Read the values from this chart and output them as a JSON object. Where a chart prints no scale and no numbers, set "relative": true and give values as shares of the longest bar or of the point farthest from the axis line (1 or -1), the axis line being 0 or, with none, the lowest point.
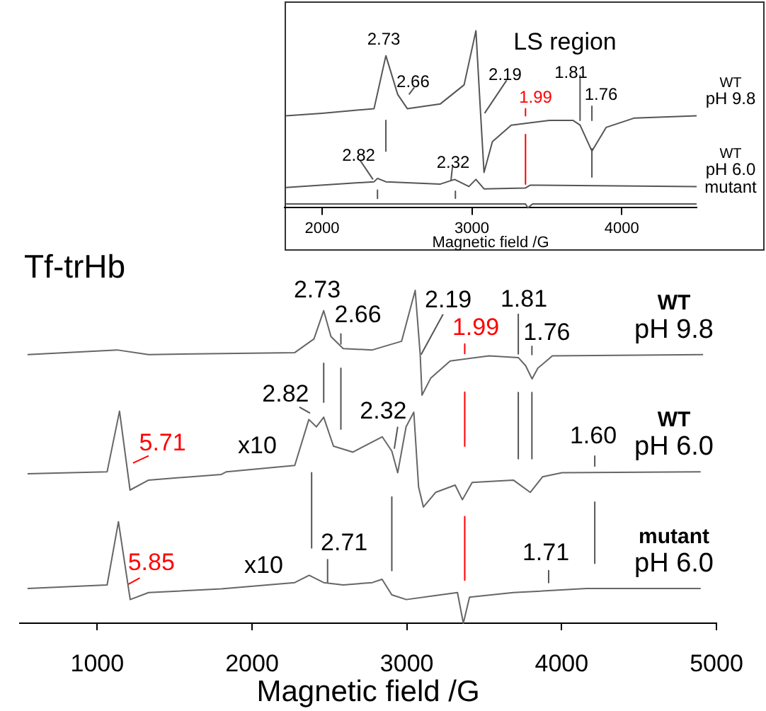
{
  "chart_data": [
    {
      "type": "line",
      "title": "LS region",
      "xlabel": "Magnetic field /G",
      "relative": true,
      "xlim": [
        1750,
        4500
      ],
      "xticks": [
        2000,
        3000,
        4000
      ],
      "series": [
        {
          "name": "WT pH 9.8",
          "color": "#555555",
          "x": [
            1760,
            2000,
            2347,
            2426,
            2505,
            2569,
            2790,
            2948,
            3027,
            3058,
            3081,
            3137,
            3263,
            3517,
            3674,
            3722,
            3801,
            3896,
            4085,
            4500
          ],
          "values": [
            0.52,
            0.534,
            0.56,
            0.859,
            0.64,
            0.56,
            0.587,
            0.694,
            1.0,
            0.534,
            0.2,
            0.374,
            0.467,
            0.494,
            0.494,
            0.467,
            0.32,
            0.454,
            0.507,
            0.52
          ]
        },
        {
          "name": "WT pH 6.0",
          "color": "#555555",
          "x": [
            1760,
            2347,
            2370,
            2426,
            2790,
            2885,
            2980,
            3027,
            3081,
            3358,
            3390,
            4500
          ],
          "values": [
            0.115,
            0.147,
            0.166,
            0.147,
            0.134,
            0.16,
            0.12,
            0.16,
            0.107,
            0.112,
            0.128,
            0.12
          ]
        },
        {
          "name": "mutant",
          "color": "#555555",
          "x": [
            1760,
            3358,
            3374,
            3405,
            4500
          ],
          "values": [
            0.022,
            0.022,
            0.0,
            0.022,
            0.022
          ]
        },
        {
          "color": "#555555",
          "x": [
            2426,
            2426
          ],
          "values": [
            0.494,
            0.32
          ]
        },
        {
          "color": "#555555",
          "x": [
            3722,
            3722
          ],
          "values": [
            0.747,
            0.494
          ]
        },
        {
          "color": "#555555",
          "x": [
            3801,
            3801
          ],
          "values": [
            0.574,
            0.494
          ]
        },
        {
          "color": "#555555",
          "x": [
            3801,
            3801
          ],
          "values": [
            0.334,
            0.174
          ]
        },
        {
          "color": "#555555",
          "x": [
            2370,
            2370
          ],
          "values": [
            0.1,
            0.053
          ]
        },
        {
          "color": "#555555",
          "x": [
            2890,
            2890
          ],
          "values": [
            0.094,
            0.054
          ]
        },
        {
          "color": "#555555",
          "x": [
            2616,
            2580
          ],
          "values": [
            0.68,
            0.64
          ]
        },
        {
          "color": "#555555",
          "x": [
            3232,
            3085
          ],
          "values": [
            0.72,
            0.534
          ]
        },
        {
          "color": "#555555",
          "x": [
            2252,
            2340
          ],
          "values": [
            0.27,
            0.16
          ]
        },
        {
          "color": "#555555",
          "x": [
            2870,
            2860
          ],
          "values": [
            0.23,
            0.15
          ]
        },
        {
          "color": "#ff0000",
          "x": [
            3358,
            3358
          ],
          "values": [
            0.56,
            0.52
          ]
        },
        {
          "color": "#ff0000",
          "x": [
            3358,
            3358
          ],
          "values": [
            0.414,
            0.134
          ]
        }
      ],
      "annotations": [
        "2.73",
        "2.66",
        "2.19",
        "1.99",
        "1.81",
        "1.76",
        "2.82",
        "2.32"
      ]
    },
    {
      "type": "line",
      "title": "Tf-trHb",
      "xlabel": "Magnetic field /G",
      "relative": true,
      "xlim": [
        500,
        5000
      ],
      "xticks": [
        1000,
        2000,
        3000,
        4000,
        5000
      ],
      "series": [
        {
          "name": "WT pH 9.8",
          "color": "#666666",
          "x": [
            550,
            1128,
            1332,
            2276,
            2400,
            2463,
            2510,
            2589,
            2777,
            2966,
            3054,
            3086,
            3098,
            3154,
            3280,
            3531,
            3720,
            3767,
            3809,
            3846,
            3940,
            4914
          ],
          "values": [
            0.807,
            0.821,
            0.807,
            0.813,
            0.854,
            0.939,
            0.861,
            0.825,
            0.821,
            0.847,
            1.0,
            0.81,
            0.685,
            0.736,
            0.788,
            0.803,
            0.798,
            0.774,
            0.734,
            0.766,
            0.803,
            0.807
          ]
        },
        {
          "name": "WT pH 6.0",
          "color": "#666666",
          "x": [
            550,
            1064,
            1144,
            1212,
            1332,
            1802,
            1835,
            2276,
            2367,
            2416,
            2463,
            2526,
            2652,
            2841,
            2903,
            2941,
            2995,
            3045,
            3076,
            3107,
            3186,
            3312,
            3359,
            3422,
            3688,
            3797,
            3877,
            4003,
            4898
          ],
          "values": [
            0.449,
            0.455,
            0.637,
            0.4,
            0.43,
            0.447,
            0.455,
            0.474,
            0.612,
            0.59,
            0.619,
            0.532,
            0.514,
            0.56,
            0.517,
            0.452,
            0.59,
            0.634,
            0.409,
            0.349,
            0.393,
            0.415,
            0.371,
            0.423,
            0.43,
            0.393,
            0.44,
            0.452,
            0.455
          ]
        },
        {
          "name": "mutant pH 6.0",
          "color": "#666666",
          "x": [
            550,
            1064,
            1137,
            1213,
            1332,
            1802,
            2276,
            2369,
            2463,
            2589,
            2777,
            2840,
            2903,
            2997,
            3217,
            3327,
            3365,
            3405,
            3688,
            4160,
            4898
          ],
          "values": [
            0.104,
            0.115,
            0.305,
            0.071,
            0.092,
            0.103,
            0.122,
            0.144,
            0.122,
            0.115,
            0.122,
            0.132,
            0.085,
            0.071,
            0.085,
            0.092,
            0.0,
            0.078,
            0.092,
            0.104,
            0.104
          ]
        },
        {
          "color": "#555555",
          "x": [
            2463,
            2463
          ],
          "values": [
            0.781,
            0.664
          ]
        },
        {
          "color": "#555555",
          "x": [
            2574,
            2574
          ],
          "values": [
            0.766,
            0.583
          ]
        },
        {
          "color": "#555555",
          "x": [
            2574,
            2574
          ],
          "values": [
            0.869,
            0.839
          ]
        },
        {
          "color": "#555555",
          "x": [
            3720,
            3720
          ],
          "values": [
            0.693,
            0.494
          ]
        },
        {
          "color": "#555555",
          "x": [
            3808,
            3808
          ],
          "values": [
            0.693,
            0.494
          ]
        },
        {
          "color": "#555555",
          "x": [
            3720,
            3720
          ],
          "values": [
            0.928,
            0.809
          ]
        },
        {
          "color": "#555555",
          "x": [
            3808,
            3808
          ],
          "values": [
            0.832,
            0.807
          ]
        },
        {
          "color": "#555555",
          "x": [
            4214,
            4214
          ],
          "values": [
            0.502,
            0.472
          ]
        },
        {
          "color": "#555555",
          "x": [
            2385,
            2385
          ],
          "values": [
            0.452,
            0.226
          ]
        },
        {
          "color": "#555555",
          "x": [
            2903,
            2903
          ],
          "values": [
            0.379,
            0.158
          ]
        },
        {
          "color": "#555555",
          "x": [
            4214,
            4214
          ],
          "values": [
            0.364,
            0.18
          ]
        },
        {
          "color": "#555555",
          "x": [
            2488,
            2488
          ],
          "values": [
            0.191,
            0.123
          ]
        },
        {
          "color": "#555555",
          "x": [
            3916,
            3916
          ],
          "values": [
            0.158,
            0.122
          ]
        },
        {
          "color": "#555555",
          "x": [
            3234,
            3092
          ],
          "values": [
            0.928,
            0.807
          ]
        },
        {
          "color": "#555555",
          "x": [
            2306,
            2375
          ],
          "values": [
            0.649,
            0.631
          ]
        },
        {
          "color": "#555555",
          "x": [
            2941,
            2919
          ],
          "values": [
            0.59,
            0.524
          ]
        },
        {
          "color": "#ff0000",
          "x": [
            3374,
            3374
          ],
          "values": [
            0.694,
            0.532
          ]
        },
        {
          "color": "#ff0000",
          "x": [
            3374,
            3374
          ],
          "values": [
            0.839,
            0.81
          ]
        },
        {
          "color": "#ff0000",
          "x": [
            3374,
            3374
          ],
          "values": [
            0.32,
            0.129
          ]
        },
        {
          "color": "#ff0000",
          "x": [
            1332,
            1231
          ],
          "values": [
            0.503,
            0.481
          ]
        },
        {
          "color": "#ff0000",
          "x": [
            1275,
            1200
          ],
          "values": [
            0.136,
            0.117
          ]
        }
      ],
      "annotations": [
        "2.73",
        "2.66",
        "2.19",
        "1.99",
        "1.81",
        "1.76",
        "2.82",
        "2.32",
        "5.71",
        "x10",
        "1.60",
        "5.85",
        "x10",
        "2.71",
        "1.71"
      ]
    }
  ]
}
